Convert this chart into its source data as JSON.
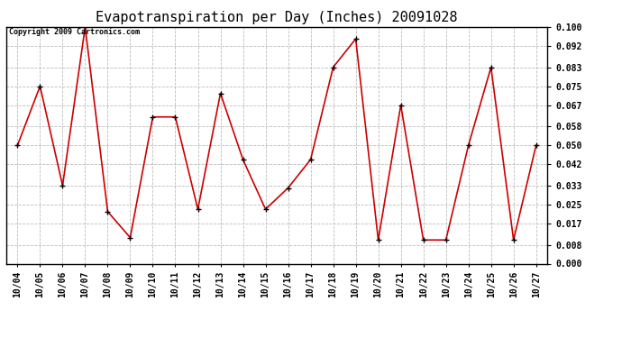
{
  "title": "Evapotranspiration per Day (Inches) 20091028",
  "copyright": "Copyright 2009 Cartronics.com",
  "x_labels": [
    "10/04",
    "10/05",
    "10/06",
    "10/07",
    "10/08",
    "10/09",
    "10/10",
    "10/11",
    "10/12",
    "10/13",
    "10/14",
    "10/15",
    "10/16",
    "10/17",
    "10/18",
    "10/19",
    "10/20",
    "10/21",
    "10/22",
    "10/23",
    "10/24",
    "10/25",
    "10/26",
    "10/27"
  ],
  "y_values": [
    0.05,
    0.075,
    0.033,
    0.1,
    0.022,
    0.011,
    0.062,
    0.062,
    0.023,
    0.072,
    0.044,
    0.023,
    0.032,
    0.044,
    0.083,
    0.095,
    0.01,
    0.067,
    0.01,
    0.01,
    0.05,
    0.083,
    0.01,
    0.05
  ],
  "line_color": "#cc0000",
  "marker": "+",
  "marker_size": 4,
  "marker_color": "#000000",
  "bg_color": "#ffffff",
  "plot_bg_color": "#ffffff",
  "grid_color": "#bbbbbb",
  "grid_style": "--",
  "ylim": [
    0.0,
    0.1
  ],
  "yticks": [
    0.0,
    0.008,
    0.017,
    0.025,
    0.033,
    0.042,
    0.05,
    0.058,
    0.067,
    0.075,
    0.083,
    0.092,
    0.1
  ],
  "title_fontsize": 11,
  "tick_fontsize": 7,
  "copyright_fontsize": 6,
  "line_width": 1.2
}
